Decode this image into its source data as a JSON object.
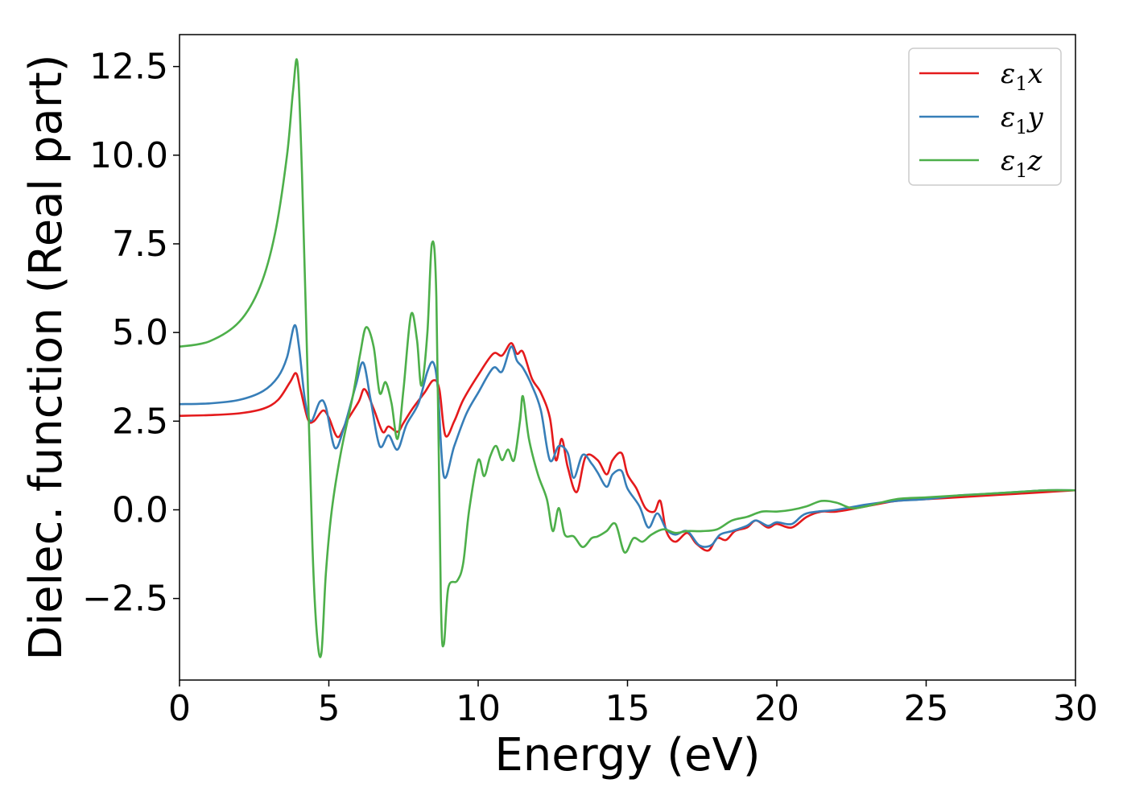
{
  "chart_data": {
    "type": "line",
    "title": "",
    "xlabel": "Energy (eV)",
    "ylabel": "Dielec. function (Real part)",
    "xlim": [
      0,
      30
    ],
    "ylim": [
      -4.8,
      13.4
    ],
    "grid": false,
    "legend_position": "top-right",
    "xticks": [
      0,
      5,
      10,
      15,
      20,
      25,
      30
    ],
    "xtick_labels": [
      "0",
      "5",
      "10",
      "15",
      "20",
      "25",
      "30"
    ],
    "yticks": [
      -2.5,
      0.0,
      2.5,
      5.0,
      7.5,
      10.0,
      12.5
    ],
    "ytick_labels": [
      "−2.5",
      "0.0",
      "2.5",
      "5.0",
      "7.5",
      "10.0",
      "12.5"
    ],
    "series": [
      {
        "name": "ε₁x",
        "legend_main": "ε",
        "legend_sub": "1",
        "legend_var": "x",
        "color": "#e41a1c",
        "points": [
          [
            0,
            2.65
          ],
          [
            1,
            2.67
          ],
          [
            2,
            2.72
          ],
          [
            2.8,
            2.85
          ],
          [
            3.3,
            3.1
          ],
          [
            3.7,
            3.6
          ],
          [
            3.9,
            3.85
          ],
          [
            4.05,
            3.4
          ],
          [
            4.3,
            2.55
          ],
          [
            4.5,
            2.5
          ],
          [
            4.8,
            2.8
          ],
          [
            5.0,
            2.6
          ],
          [
            5.3,
            2.05
          ],
          [
            5.6,
            2.5
          ],
          [
            6.0,
            3.05
          ],
          [
            6.2,
            3.4
          ],
          [
            6.5,
            2.85
          ],
          [
            6.8,
            2.2
          ],
          [
            7.0,
            2.35
          ],
          [
            7.3,
            2.2
          ],
          [
            7.5,
            2.45
          ],
          [
            7.8,
            2.85
          ],
          [
            8.2,
            3.3
          ],
          [
            8.5,
            3.65
          ],
          [
            8.7,
            3.4
          ],
          [
            8.9,
            2.1
          ],
          [
            9.2,
            2.5
          ],
          [
            9.5,
            3.1
          ],
          [
            10.0,
            3.8
          ],
          [
            10.5,
            4.4
          ],
          [
            10.8,
            4.35
          ],
          [
            11.1,
            4.7
          ],
          [
            11.3,
            4.4
          ],
          [
            11.5,
            4.45
          ],
          [
            11.8,
            3.7
          ],
          [
            12.1,
            3.3
          ],
          [
            12.4,
            2.6
          ],
          [
            12.6,
            1.4
          ],
          [
            12.8,
            2.0
          ],
          [
            13.0,
            1.2
          ],
          [
            13.3,
            0.5
          ],
          [
            13.6,
            1.5
          ],
          [
            14.0,
            1.4
          ],
          [
            14.3,
            1.0
          ],
          [
            14.5,
            1.4
          ],
          [
            14.8,
            1.6
          ],
          [
            15.0,
            1.0
          ],
          [
            15.3,
            0.6
          ],
          [
            15.6,
            0.05
          ],
          [
            15.9,
            -0.05
          ],
          [
            16.1,
            0.25
          ],
          [
            16.3,
            -0.6
          ],
          [
            16.6,
            -0.9
          ],
          [
            17.0,
            -0.65
          ],
          [
            17.3,
            -0.95
          ],
          [
            17.7,
            -1.15
          ],
          [
            18.0,
            -0.8
          ],
          [
            18.3,
            -0.85
          ],
          [
            18.6,
            -0.6
          ],
          [
            19.0,
            -0.5
          ],
          [
            19.3,
            -0.3
          ],
          [
            19.7,
            -0.5
          ],
          [
            20.0,
            -0.4
          ],
          [
            20.5,
            -0.5
          ],
          [
            21.0,
            -0.2
          ],
          [
            21.5,
            -0.05
          ],
          [
            22.0,
            -0.05
          ],
          [
            23.0,
            0.1
          ],
          [
            24.0,
            0.25
          ],
          [
            25.0,
            0.3
          ],
          [
            26.0,
            0.35
          ],
          [
            27.0,
            0.4
          ],
          [
            28.0,
            0.45
          ],
          [
            29.0,
            0.5
          ],
          [
            30.0,
            0.55
          ]
        ]
      },
      {
        "name": "ε₁y",
        "legend_main": "ε",
        "legend_sub": "1",
        "legend_var": "y",
        "color": "#377eb8",
        "points": [
          [
            0,
            2.98
          ],
          [
            1,
            3.0
          ],
          [
            2,
            3.1
          ],
          [
            2.8,
            3.35
          ],
          [
            3.3,
            3.75
          ],
          [
            3.6,
            4.3
          ],
          [
            3.85,
            5.2
          ],
          [
            4.0,
            4.6
          ],
          [
            4.2,
            3.1
          ],
          [
            4.4,
            2.5
          ],
          [
            4.7,
            3.05
          ],
          [
            4.9,
            2.9
          ],
          [
            5.2,
            1.75
          ],
          [
            5.5,
            2.3
          ],
          [
            5.9,
            3.5
          ],
          [
            6.15,
            4.15
          ],
          [
            6.4,
            3.1
          ],
          [
            6.7,
            1.8
          ],
          [
            7.0,
            2.1
          ],
          [
            7.3,
            1.7
          ],
          [
            7.6,
            2.4
          ],
          [
            8.0,
            3.0
          ],
          [
            8.3,
            3.9
          ],
          [
            8.5,
            4.15
          ],
          [
            8.65,
            3.4
          ],
          [
            8.85,
            0.95
          ],
          [
            9.2,
            1.8
          ],
          [
            9.6,
            2.7
          ],
          [
            10.0,
            3.3
          ],
          [
            10.5,
            4.0
          ],
          [
            10.8,
            3.9
          ],
          [
            11.1,
            4.6
          ],
          [
            11.3,
            4.2
          ],
          [
            11.5,
            4.0
          ],
          [
            11.8,
            3.5
          ],
          [
            12.1,
            2.8
          ],
          [
            12.4,
            1.4
          ],
          [
            12.7,
            1.8
          ],
          [
            13.0,
            1.6
          ],
          [
            13.2,
            0.9
          ],
          [
            13.5,
            1.55
          ],
          [
            13.8,
            1.3
          ],
          [
            14.0,
            1.05
          ],
          [
            14.3,
            0.65
          ],
          [
            14.5,
            1.0
          ],
          [
            14.8,
            1.1
          ],
          [
            15.0,
            0.6
          ],
          [
            15.4,
            0.1
          ],
          [
            15.7,
            -0.5
          ],
          [
            16.0,
            -0.1
          ],
          [
            16.3,
            -0.55
          ],
          [
            16.6,
            -0.7
          ],
          [
            17.0,
            -0.6
          ],
          [
            17.4,
            -1.0
          ],
          [
            17.8,
            -1.0
          ],
          [
            18.1,
            -0.7
          ],
          [
            18.5,
            -0.6
          ],
          [
            19.0,
            -0.45
          ],
          [
            19.3,
            -0.3
          ],
          [
            19.7,
            -0.45
          ],
          [
            20.0,
            -0.35
          ],
          [
            20.5,
            -0.4
          ],
          [
            21.0,
            -0.1
          ],
          [
            22.0,
            0.0
          ],
          [
            23.0,
            0.15
          ],
          [
            24.0,
            0.25
          ],
          [
            25.0,
            0.3
          ],
          [
            26.0,
            0.4
          ],
          [
            27.0,
            0.45
          ],
          [
            28.0,
            0.5
          ],
          [
            29.0,
            0.55
          ],
          [
            30.0,
            0.55
          ]
        ]
      },
      {
        "name": "ε₁z",
        "legend_main": "ε",
        "legend_sub": "1",
        "legend_var": "z",
        "color": "#4daf4a",
        "points": [
          [
            0,
            4.6
          ],
          [
            1,
            4.75
          ],
          [
            2,
            5.3
          ],
          [
            2.7,
            6.3
          ],
          [
            3.2,
            7.8
          ],
          [
            3.6,
            10.0
          ],
          [
            3.8,
            11.8
          ],
          [
            3.95,
            12.6
          ],
          [
            4.1,
            9.5
          ],
          [
            4.25,
            5.0
          ],
          [
            4.45,
            -1.0
          ],
          [
            4.6,
            -3.5
          ],
          [
            4.75,
            -4.05
          ],
          [
            4.9,
            -1.8
          ],
          [
            5.1,
            0.0
          ],
          [
            5.4,
            1.6
          ],
          [
            5.8,
            3.2
          ],
          [
            6.05,
            4.4
          ],
          [
            6.25,
            5.15
          ],
          [
            6.5,
            4.6
          ],
          [
            6.7,
            3.3
          ],
          [
            6.9,
            3.6
          ],
          [
            7.1,
            3.0
          ],
          [
            7.3,
            2.0
          ],
          [
            7.5,
            3.4
          ],
          [
            7.75,
            5.5
          ],
          [
            7.95,
            4.8
          ],
          [
            8.1,
            3.5
          ],
          [
            8.3,
            5.0
          ],
          [
            8.45,
            7.5
          ],
          [
            8.6,
            6.0
          ],
          [
            8.75,
            -2.5
          ],
          [
            8.85,
            -3.8
          ],
          [
            9.0,
            -2.2
          ],
          [
            9.3,
            -2.0
          ],
          [
            9.5,
            -1.5
          ],
          [
            9.7,
            0.0
          ],
          [
            10.0,
            1.4
          ],
          [
            10.2,
            0.95
          ],
          [
            10.4,
            1.5
          ],
          [
            10.6,
            1.8
          ],
          [
            10.8,
            1.4
          ],
          [
            11.0,
            1.7
          ],
          [
            11.2,
            1.4
          ],
          [
            11.4,
            2.5
          ],
          [
            11.5,
            3.2
          ],
          [
            11.7,
            2.0
          ],
          [
            12.0,
            1.0
          ],
          [
            12.3,
            0.3
          ],
          [
            12.5,
            -0.6
          ],
          [
            12.7,
            0.05
          ],
          [
            12.9,
            -0.7
          ],
          [
            13.2,
            -0.75
          ],
          [
            13.5,
            -1.05
          ],
          [
            13.8,
            -0.8
          ],
          [
            14.0,
            -0.75
          ],
          [
            14.3,
            -0.6
          ],
          [
            14.6,
            -0.4
          ],
          [
            14.9,
            -1.2
          ],
          [
            15.2,
            -0.8
          ],
          [
            15.5,
            -0.9
          ],
          [
            15.8,
            -0.7
          ],
          [
            16.2,
            -0.55
          ],
          [
            16.6,
            -0.65
          ],
          [
            17.0,
            -0.6
          ],
          [
            17.5,
            -0.6
          ],
          [
            18.0,
            -0.55
          ],
          [
            18.5,
            -0.3
          ],
          [
            19.0,
            -0.2
          ],
          [
            19.5,
            -0.05
          ],
          [
            20.0,
            -0.05
          ],
          [
            20.5,
            0.0
          ],
          [
            21.0,
            0.1
          ],
          [
            21.5,
            0.25
          ],
          [
            22.0,
            0.2
          ],
          [
            22.5,
            0.05
          ],
          [
            23.0,
            0.1
          ],
          [
            24.0,
            0.3
          ],
          [
            25.0,
            0.35
          ],
          [
            26.0,
            0.4
          ],
          [
            27.0,
            0.45
          ],
          [
            28.0,
            0.5
          ],
          [
            29.0,
            0.55
          ],
          [
            30.0,
            0.55
          ]
        ]
      }
    ]
  }
}
